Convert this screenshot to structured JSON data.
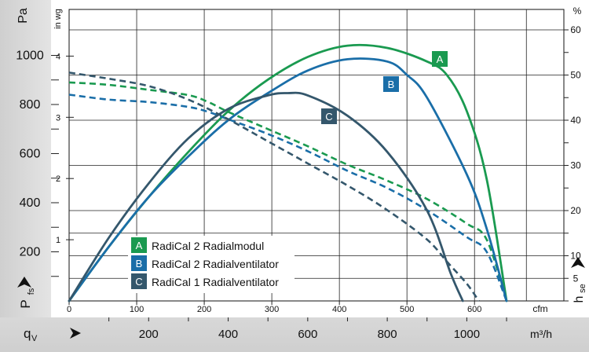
{
  "chart_data": {
    "type": "line",
    "y_left_unit": "Pa",
    "y_left_symbol_main": "P",
    "y_left_symbol_sub": "fs",
    "y_inner_unit": "in wg",
    "y_right_unit": "%",
    "y_right_symbol_main": "h",
    "y_right_symbol_sub": "se",
    "x_top_unit": "cfm",
    "x_bottom_unit": "m³/h",
    "x_symbol_main": "q",
    "x_symbol_sub": "V",
    "pa_ticks": [
      "200",
      "400",
      "600",
      "800",
      "1000"
    ],
    "inwg_ticks": [
      "1",
      "2",
      "3",
      "4"
    ],
    "pct_ticks": [
      "5",
      "10",
      "20",
      "30",
      "40",
      "50",
      "60"
    ],
    "cfm_ticks": [
      "0",
      "100",
      "200",
      "300",
      "400",
      "500",
      "600"
    ],
    "m3h_ticks": [
      "200",
      "400",
      "600",
      "800",
      "1000"
    ],
    "xlim_m3h": [
      0,
      1150
    ],
    "ylim_pa": [
      0,
      1080
    ],
    "ylim_pct": [
      0,
      64
    ],
    "grid": true,
    "legend_position": "bottom-left",
    "series": [
      {
        "label": "A",
        "name": "RadiCal 2 Radialmodul",
        "color": "#1a9a50",
        "pressure_pa": [
          [
            0,
            890
          ],
          [
            100,
            880
          ],
          [
            200,
            860
          ],
          [
            300,
            838
          ],
          [
            350,
            810
          ],
          [
            400,
            770
          ],
          [
            500,
            700
          ],
          [
            600,
            630
          ],
          [
            700,
            555
          ],
          [
            800,
            490
          ],
          [
            900,
            415
          ],
          [
            1000,
            315
          ],
          [
            1050,
            250
          ],
          [
            1100,
            0
          ]
        ],
        "efficiency_pct": [
          [
            0,
            0
          ],
          [
            100,
            12
          ],
          [
            200,
            23
          ],
          [
            300,
            33
          ],
          [
            400,
            42
          ],
          [
            500,
            49
          ],
          [
            600,
            54
          ],
          [
            700,
            56.5
          ],
          [
            800,
            56
          ],
          [
            900,
            53
          ],
          [
            950,
            50
          ],
          [
            1000,
            42
          ],
          [
            1050,
            27
          ],
          [
            1100,
            0
          ]
        ]
      },
      {
        "label": "B",
        "name": "RadiCal 2 Radialventilator",
        "color": "#1a6ea8",
        "pressure_pa": [
          [
            0,
            840
          ],
          [
            100,
            820
          ],
          [
            200,
            810
          ],
          [
            300,
            790
          ],
          [
            350,
            770
          ],
          [
            400,
            740
          ],
          [
            500,
            680
          ],
          [
            600,
            610
          ],
          [
            700,
            530
          ],
          [
            800,
            460
          ],
          [
            900,
            370
          ],
          [
            1000,
            260
          ],
          [
            1050,
            200
          ],
          [
            1100,
            0
          ]
        ],
        "efficiency_pct": [
          [
            0,
            0
          ],
          [
            100,
            12
          ],
          [
            200,
            23
          ],
          [
            300,
            32
          ],
          [
            400,
            40
          ],
          [
            500,
            46
          ],
          [
            600,
            51
          ],
          [
            700,
            53.5
          ],
          [
            800,
            53
          ],
          [
            850,
            50
          ],
          [
            900,
            45
          ],
          [
            1000,
            28
          ],
          [
            1050,
            16
          ],
          [
            1100,
            0
          ]
        ]
      },
      {
        "label": "C",
        "name": "RadiCal 1 Radialventilator",
        "color": "#34576c",
        "pressure_pa": [
          [
            0,
            930
          ],
          [
            100,
            905
          ],
          [
            200,
            875
          ],
          [
            300,
            820
          ],
          [
            400,
            740
          ],
          [
            500,
            650
          ],
          [
            600,
            560
          ],
          [
            700,
            470
          ],
          [
            800,
            370
          ],
          [
            900,
            250
          ],
          [
            950,
            160
          ],
          [
            1000,
            70
          ],
          [
            1030,
            0
          ]
        ],
        "efficiency_pct": [
          [
            0,
            0
          ],
          [
            100,
            14
          ],
          [
            200,
            26
          ],
          [
            300,
            36
          ],
          [
            400,
            42.5
          ],
          [
            500,
            45.5
          ],
          [
            550,
            46
          ],
          [
            600,
            45.5
          ],
          [
            700,
            41
          ],
          [
            800,
            33
          ],
          [
            900,
            20
          ],
          [
            960,
            6
          ],
          [
            990,
            0
          ]
        ]
      }
    ]
  }
}
